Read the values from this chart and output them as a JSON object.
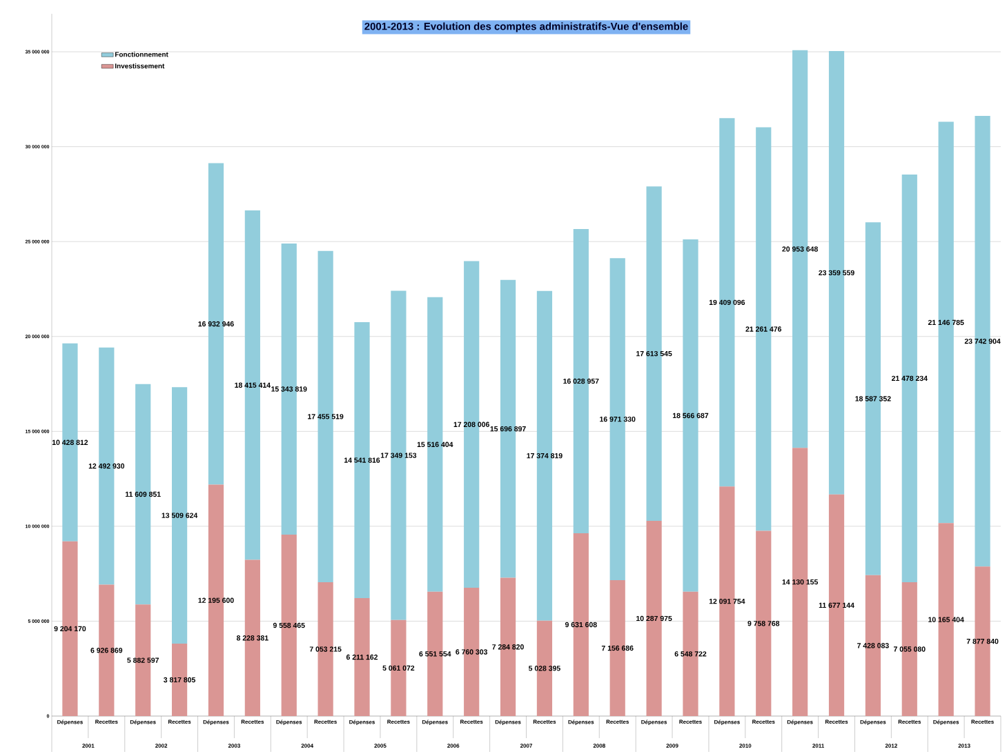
{
  "chart_data": {
    "type": "bar",
    "stacked": true,
    "title": "2001-2013 : Evolution des comptes administratifs-Vue d'ensemble",
    "categories": [
      "Dépenses",
      "Recettes",
      "Dépenses",
      "Recettes",
      "Dépenses",
      "Recettes",
      "Dépenses",
      "Recettes",
      "Dépenses",
      "Recettes",
      "Dépenses",
      "Recettes",
      "Dépenses",
      "Recettes",
      "Dépenses",
      "Recettes",
      "Dépenses",
      "Recettes",
      "Dépenses",
      "Recettes",
      "Dépenses",
      "Recettes",
      "Dépenses",
      "Recettes",
      "Dépenses",
      "Recettes"
    ],
    "annotations": [
      "2001",
      "2002",
      "2003",
      "2004",
      "2005",
      "2006",
      "2007",
      "2008",
      "2009",
      "2010",
      "2011",
      "2012",
      "2013"
    ],
    "series": [
      {
        "name": "Investissement",
        "color": "#da9694",
        "values": [
          9204170,
          6926869,
          5882597,
          3817805,
          12195600,
          8228381,
          9558465,
          7053215,
          6211162,
          5061072,
          6551554,
          6760303,
          7284820,
          5028395,
          9631608,
          7156686,
          10287975,
          6548722,
          12091754,
          9758768,
          14130155,
          11677144,
          7428083,
          7055080,
          10165404,
          7877840
        ],
        "value_labels": [
          "9 204 170",
          "6 926 869",
          "5 882 597",
          "3 817 805",
          "12 195 600",
          "8 228 381",
          "9 558 465",
          "7 053 215",
          "6 211 162",
          "5 061 072",
          "6 551 554",
          "6 760 303",
          "7 284 820",
          "5 028 395",
          "9 631 608",
          "7 156 686",
          "10 287 975",
          "6 548 722",
          "12 091 754",
          "9 758 768",
          "14 130 155",
          "11 677 144",
          "7 428 083",
          "7 055 080",
          "10 165 404",
          "7 877 840"
        ]
      },
      {
        "name": "Fonctionnement",
        "color": "#92cddc",
        "values": [
          10428812,
          12492930,
          11609851,
          13509624,
          16932946,
          18415414,
          15343819,
          17455519,
          14541816,
          17349153,
          15516404,
          17208006,
          15696897,
          17374819,
          16028957,
          16971330,
          17613545,
          18566687,
          19409096,
          21261476,
          20953648,
          23359559,
          18587352,
          21478234,
          21146785,
          23742904
        ],
        "value_labels": [
          "10 428 812",
          "12 492 930",
          "11 609 851",
          "13 509 624",
          "16 932 946",
          "18 415 414",
          "15 343 819",
          "17 455 519",
          "14 541 816",
          "17 349 153",
          "15 516 404",
          "17 208 006",
          "15 696 897",
          "17 374 819",
          "16 028 957",
          "16 971 330",
          "17 613 545",
          "18 566 687",
          "19 409 096",
          "21 261 476",
          "20 953 648",
          "23 359 559",
          "18 587 352",
          "21 478 234",
          "21 146 785",
          "23 742 904"
        ]
      }
    ],
    "ylim": [
      0,
      37000000
    ],
    "yticks": [
      0,
      {
        "value": 5000000,
        "label": "5 000 000"
      },
      {
        "value": 10000000,
        "label": "10 000 000"
      },
      {
        "value": 15000000,
        "label": "15 000 000"
      },
      {
        "value": 20000000,
        "label": "20 000 000"
      },
      {
        "value": 25000000,
        "label": "25 000 000"
      },
      {
        "value": 30000000,
        "label": "30 000 000"
      },
      {
        "value": 35000000,
        "label": "35 000 000"
      }
    ],
    "grid": "y",
    "legend": "top left"
  }
}
